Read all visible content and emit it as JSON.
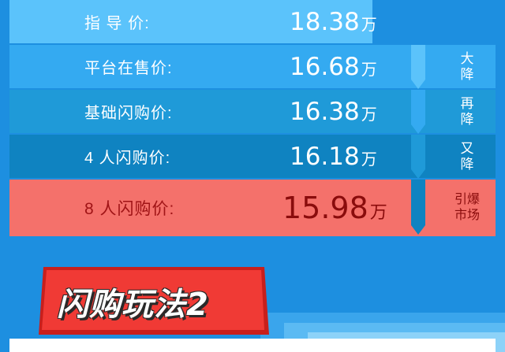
{
  "rows": [
    {
      "label": "指  导  价:",
      "price": "18.38",
      "unit": "万"
    },
    {
      "label": "平台在售价:",
      "price": "16.68",
      "unit": "万"
    },
    {
      "label": "基础闪购价:",
      "price": "16.38",
      "unit": "万"
    },
    {
      "label": "4 人闪购价:",
      "price": "16.18",
      "unit": "万"
    },
    {
      "label": "8 人闪购价:",
      "price": "15.98",
      "unit": "万"
    }
  ],
  "tags": [
    {
      "line1": "大",
      "line2": "降"
    },
    {
      "line1": "再",
      "line2": "降"
    },
    {
      "line1": "又",
      "line2": "降"
    },
    {
      "line1": "引爆",
      "line2": "市场"
    }
  ],
  "section_title": "闪购玩法2",
  "colors": {
    "background": "#1d8fe0",
    "row1": "#5bc3fb",
    "row2": "#34aaf1",
    "row3": "#1f9ad8",
    "row4": "#0f83c1",
    "highlight_row": "#f4716b",
    "title_card": "#f03a35"
  }
}
